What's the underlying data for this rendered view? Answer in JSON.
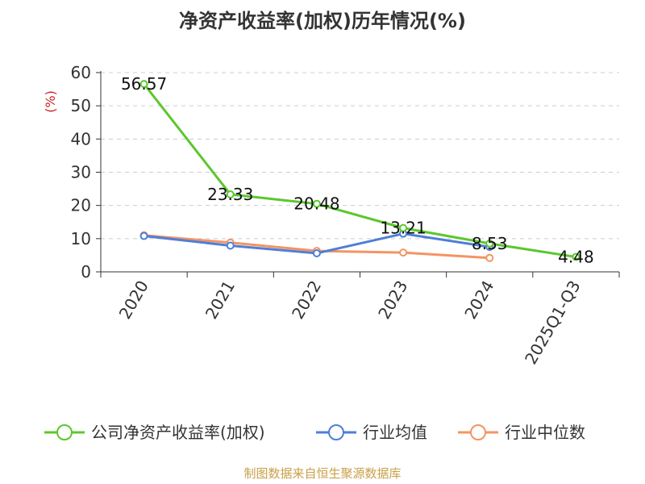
{
  "title": "净资产收益率(加权)历年情况(%)",
  "source": "制图数据来自恒生聚源数据库",
  "colors": {
    "company": "#5cc72e",
    "industry_avg": "#4f7ed8",
    "industry_median": "#f39463",
    "grid": "#cccccc",
    "axis": "#333333"
  },
  "chart_data": {
    "type": "line",
    "categories": [
      "2020",
      "2021",
      "2022",
      "2023",
      "2024",
      "2025Q1-Q3"
    ],
    "ylabel": "(%)",
    "ylim": [
      0,
      60
    ],
    "yticks": [
      0,
      10,
      20,
      30,
      40,
      50,
      60
    ],
    "grid": true,
    "legend_position": "bottom",
    "series": [
      {
        "name": "公司净资产收益率(加权)",
        "color": "#5cc72e",
        "values": [
          56.57,
          23.33,
          20.48,
          13.21,
          8.53,
          4.48
        ],
        "labels": [
          "56.57",
          "23.33",
          "20.48",
          "13.21",
          "8.53",
          "4.48"
        ]
      },
      {
        "name": "行业均值",
        "color": "#4f7ed8",
        "values": [
          10.8,
          7.9,
          5.6,
          11.5,
          7.5,
          null
        ]
      },
      {
        "name": "行业中位数",
        "color": "#f39463",
        "values": [
          11.0,
          8.8,
          6.3,
          5.8,
          4.2,
          null
        ]
      }
    ]
  }
}
